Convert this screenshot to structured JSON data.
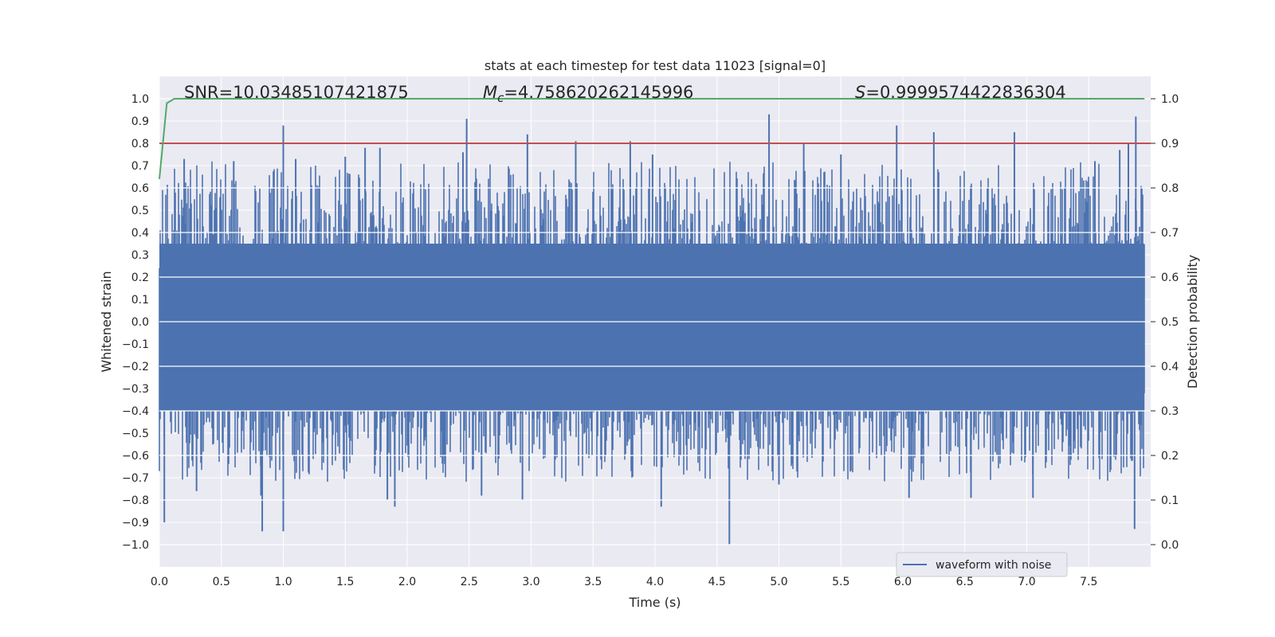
{
  "chart_data": {
    "type": "line",
    "title": "stats at each timestep for test data 11023 [signal=0]",
    "xlabel": "Time (s)",
    "ylabel": "Whitened strain",
    "y2label": "Detection probability",
    "xlim": [
      0.0,
      8.0
    ],
    "ylim": [
      -1.1,
      1.1
    ],
    "y2lim": [
      -0.05,
      1.05
    ],
    "xticks": [
      "0.0",
      "0.5",
      "1.0",
      "1.5",
      "2.0",
      "2.5",
      "3.0",
      "3.5",
      "4.0",
      "4.5",
      "5.0",
      "5.5",
      "6.0",
      "6.5",
      "7.0",
      "7.5"
    ],
    "yticks": [
      "1.0",
      "0.9",
      "0.8",
      "0.7",
      "0.6",
      "0.5",
      "0.4",
      "0.3",
      "0.2",
      "0.1",
      "0.0",
      "−0.1",
      "−0.2",
      "−0.3",
      "−0.4",
      "−0.5",
      "−0.6",
      "−0.7",
      "−0.8",
      "−0.9",
      "−1.0"
    ],
    "y2ticks": [
      "1.0",
      "0.9",
      "0.8",
      "0.7",
      "0.6",
      "0.5",
      "0.4",
      "0.3",
      "0.2",
      "0.1",
      "0.0"
    ],
    "annotations": {
      "snr": "SNR=10.03485107421875",
      "mc_symbol": "M",
      "mc_sub": "c",
      "mc_value": "=4.758620262145996",
      "s_symbol": "S",
      "s_value": "=0.9999574422836304"
    },
    "legend": {
      "label": "waveform with noise",
      "location": "lower-right"
    },
    "series": [
      {
        "name": "waveform with noise",
        "axis": "left",
        "color": "#4c72b0",
        "duration_s": 7.95,
        "envelope_upper": 0.35,
        "envelope_lower": -0.4,
        "peaks": [
          {
            "t": 0.04,
            "y": -0.9
          },
          {
            "t": 0.2,
            "y": 0.73
          },
          {
            "t": 0.3,
            "y": -0.76
          },
          {
            "t": 0.6,
            "y": 0.72
          },
          {
            "t": 0.83,
            "y": -0.94
          },
          {
            "t": 0.82,
            "y": -0.78
          },
          {
            "t": 1.0,
            "y": 0.88
          },
          {
            "t": 1.0,
            "y": -0.94
          },
          {
            "t": 1.1,
            "y": 0.73
          },
          {
            "t": 1.5,
            "y": 0.74
          },
          {
            "t": 1.66,
            "y": 0.78
          },
          {
            "t": 1.78,
            "y": 0.78
          },
          {
            "t": 1.84,
            "y": -0.8
          },
          {
            "t": 1.9,
            "y": -0.83
          },
          {
            "t": 2.45,
            "y": 0.76
          },
          {
            "t": 2.48,
            "y": 0.91
          },
          {
            "t": 2.6,
            "y": -0.78
          },
          {
            "t": 2.93,
            "y": -0.8
          },
          {
            "t": 2.97,
            "y": 0.84
          },
          {
            "t": 3.36,
            "y": 0.81
          },
          {
            "t": 3.8,
            "y": 0.81
          },
          {
            "t": 3.98,
            "y": 0.75
          },
          {
            "t": 4.05,
            "y": -0.83
          },
          {
            "t": 4.6,
            "y": -1.0
          },
          {
            "t": 4.92,
            "y": 0.93
          },
          {
            "t": 5.0,
            "y": -0.73
          },
          {
            "t": 5.2,
            "y": 0.8
          },
          {
            "t": 5.5,
            "y": 0.75
          },
          {
            "t": 5.95,
            "y": 0.88
          },
          {
            "t": 6.05,
            "y": -0.79
          },
          {
            "t": 6.25,
            "y": 0.85
          },
          {
            "t": 6.55,
            "y": -0.79
          },
          {
            "t": 6.9,
            "y": 0.85
          },
          {
            "t": 7.05,
            "y": -0.79
          },
          {
            "t": 7.55,
            "y": 0.72
          },
          {
            "t": 7.75,
            "y": 0.77
          },
          {
            "t": 7.82,
            "y": 0.8
          },
          {
            "t": 7.88,
            "y": 0.92
          },
          {
            "t": 7.87,
            "y": -0.93
          }
        ]
      },
      {
        "name": "detection probability",
        "axis": "right",
        "color": "#55a868",
        "x": [
          0.0,
          0.06,
          0.12,
          7.95
        ],
        "y": [
          0.82,
          0.99,
          1.0,
          1.0
        ]
      },
      {
        "name": "threshold",
        "axis": "right",
        "color": "#c44e52",
        "x": [
          0.0,
          8.0
        ],
        "y": [
          0.9,
          0.9
        ]
      }
    ]
  }
}
